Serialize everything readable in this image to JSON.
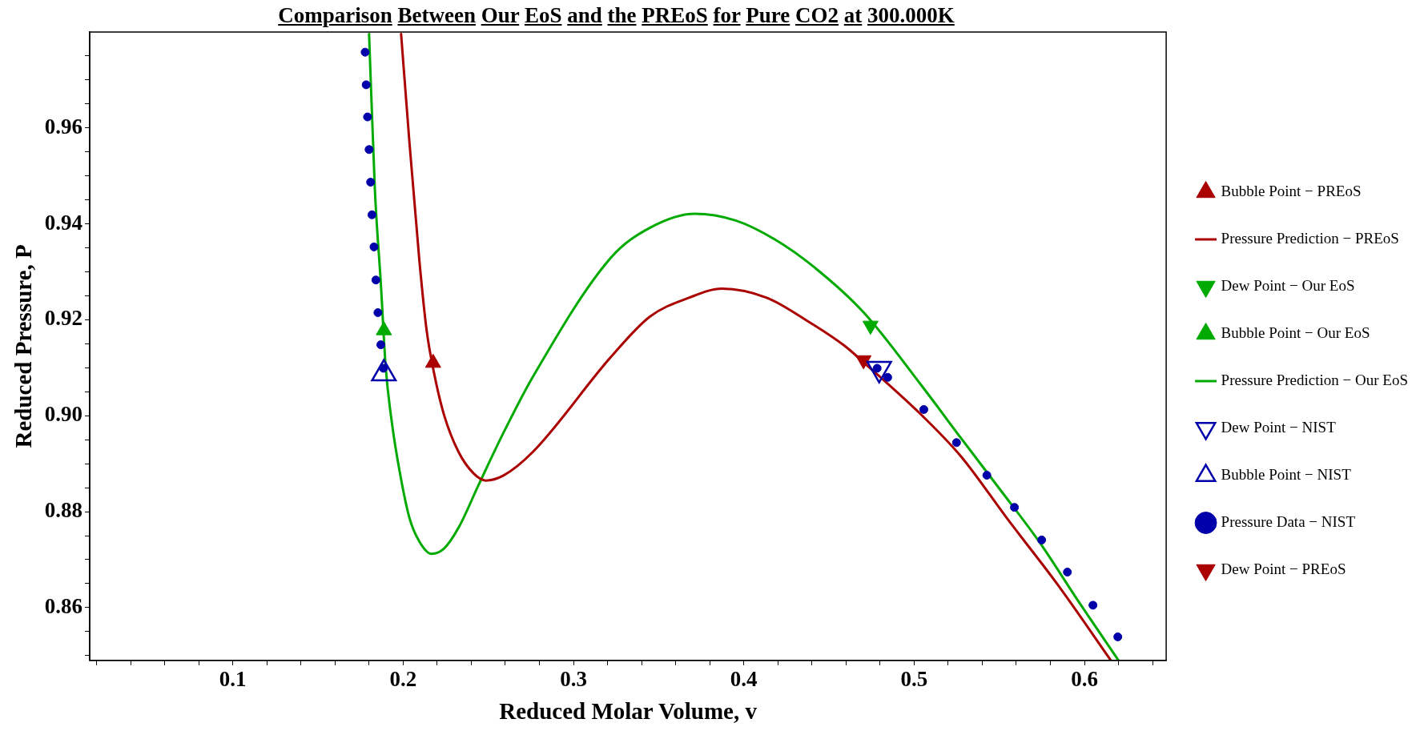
{
  "chart_data": {
    "type": "scatter",
    "title": "Comparison Between Our EoS and the PREoS  for Pure CO2 at 300.000K",
    "xlabel": "Reduced Molar Volume, v",
    "ylabel": "Reduced Pressure, P",
    "xlim": [
      0.016,
      0.648
    ],
    "xticks": [
      {
        "value": 0.02,
        "label": null
      },
      {
        "value": 0.04,
        "label": null
      },
      {
        "value": 0.06,
        "label": null
      },
      {
        "value": 0.08,
        "label": null
      },
      0.1,
      {
        "value": 0.12,
        "label": null
      },
      {
        "value": 0.14,
        "label": null
      },
      {
        "value": 0.16,
        "label": null
      },
      {
        "value": 0.18,
        "label": null
      },
      0.2,
      {
        "value": 0.22,
        "label": null
      },
      {
        "value": 0.24,
        "label": null
      },
      {
        "value": 0.26,
        "label": null
      },
      {
        "value": 0.28,
        "label": null
      },
      0.3,
      {
        "value": 0.32,
        "label": null
      },
      {
        "value": 0.34,
        "label": null
      },
      {
        "value": 0.36,
        "label": null
      },
      {
        "value": 0.38,
        "label": null
      },
      0.4,
      {
        "value": 0.42,
        "label": null
      },
      {
        "value": 0.44,
        "label": null
      },
      {
        "value": 0.46,
        "label": null
      },
      {
        "value": 0.48,
        "label": null
      },
      0.5,
      {
        "value": 0.52,
        "label": null
      },
      {
        "value": 0.54,
        "label": null
      },
      {
        "value": 0.56,
        "label": null
      },
      {
        "value": 0.58,
        "label": null
      },
      0.6,
      {
        "value": 0.62,
        "label": null
      },
      {
        "value": 0.64,
        "label": null
      }
    ],
    "ylim": [
      0.849,
      0.98
    ],
    "yticks": [
      {
        "value": 0.85,
        "label": null
      },
      {
        "value": 0.855,
        "label": null
      },
      {
        "value": 0.86,
        "label": "0.86"
      },
      {
        "value": 0.865,
        "label": null
      },
      {
        "value": 0.87,
        "label": null
      },
      {
        "value": 0.875,
        "label": null
      },
      {
        "value": 0.88,
        "label": "0.88"
      },
      {
        "value": 0.885,
        "label": null
      },
      {
        "value": 0.89,
        "label": null
      },
      {
        "value": 0.895,
        "label": null
      },
      {
        "value": 0.9,
        "label": "0.90"
      },
      {
        "value": 0.905,
        "label": null
      },
      {
        "value": 0.91,
        "label": null
      },
      {
        "value": 0.915,
        "label": null
      },
      {
        "value": 0.92,
        "label": "0.92"
      },
      {
        "value": 0.925,
        "label": null
      },
      {
        "value": 0.93,
        "label": null
      },
      {
        "value": 0.935,
        "label": null
      },
      {
        "value": 0.94,
        "label": "0.94"
      },
      {
        "value": 0.945,
        "label": null
      },
      {
        "value": 0.95,
        "label": null
      },
      {
        "value": 0.955,
        "label": null
      },
      {
        "value": 0.96,
        "label": "0.96"
      },
      {
        "value": 0.965,
        "label": null
      },
      {
        "value": 0.97,
        "label": null
      },
      {
        "value": 0.975,
        "label": null
      }
    ],
    "grid": false,
    "legend": "right",
    "series": [
      {
        "name": "Bubble Point − PREoS",
        "type": "scatter",
        "marker": "triangle",
        "color": "#aa0000",
        "x": [
          0.2176
        ],
        "values": [
          0.911
        ]
      },
      {
        "name": "Pressure Prediction − PREoS",
        "type": "line",
        "marker": "none",
        "color": "#aa0000",
        "x": [
          0.1988,
          0.2037,
          0.2095,
          0.2138,
          0.2181,
          0.224,
          0.2326,
          0.2413,
          0.2485,
          0.2587,
          0.276,
          0.3221,
          0.345,
          0.3678,
          0.3872,
          0.4135,
          0.4363,
          0.4591,
          0.4705,
          0.5048,
          0.5276,
          0.555,
          0.5847,
          0.6155
        ],
        "values": [
          0.9796,
          0.957,
          0.9325,
          0.9178,
          0.909,
          0.9002,
          0.8924,
          0.888,
          0.8865,
          0.8875,
          0.8924,
          0.9123,
          0.9207,
          0.9246,
          0.9265,
          0.9246,
          0.92,
          0.9146,
          0.9111,
          0.9,
          0.8915,
          0.8784,
          0.8646,
          0.849
        ]
      },
      {
        "name": "Dew Point − Our EoS",
        "type": "scatter",
        "marker": "triangle-down",
        "color": "#00aa00",
        "x": [
          0.4744
        ],
        "values": [
          0.9188
        ]
      },
      {
        "name": "Bubble Point − Our EoS",
        "type": "scatter",
        "marker": "triangle",
        "color": "#00aa00",
        "x": [
          0.1887
        ],
        "values": [
          0.9178
        ]
      },
      {
        "name": "Pressure Prediction − Our EoS",
        "type": "line",
        "marker": "none",
        "color": "#00aa00",
        "x": [
          0.18,
          0.1834,
          0.1869,
          0.1898,
          0.1935,
          0.1979,
          0.2037,
          0.2095,
          0.2167,
          0.224,
          0.2326,
          0.2442,
          0.2587,
          0.276,
          0.3221,
          0.345,
          0.3712,
          0.3952,
          0.418,
          0.4409,
          0.4705,
          0.5048,
          0.5276,
          0.5505,
          0.5733,
          0.5961,
          0.62
        ],
        "values": [
          0.9796,
          0.9472,
          0.9276,
          0.91,
          0.8983,
          0.8885,
          0.8787,
          0.8738,
          0.8712,
          0.8723,
          0.8767,
          0.8855,
          0.8963,
          0.908,
          0.933,
          0.9392,
          0.9421,
          0.9407,
          0.9368,
          0.9311,
          0.9215,
          0.9061,
          0.8953,
          0.8846,
          0.8738,
          0.8615,
          0.849
        ]
      },
      {
        "name": "Dew Point − NIST",
        "type": "scatter",
        "marker": "triangle-down-open",
        "color": "#0000aa",
        "x": [
          0.4795
        ],
        "values": [
          0.9098
        ]
      },
      {
        "name": "Bubble Point − NIST",
        "type": "scatter",
        "marker": "triangle-open",
        "color": "#0000aa",
        "x": [
          0.1887
        ],
        "values": [
          0.9088
        ]
      },
      {
        "name": "Pressure Data − NIST",
        "type": "scatter",
        "marker": "circle",
        "color": "#0000aa",
        "x": [
          0.1777,
          0.1783,
          0.1791,
          0.18,
          0.1809,
          0.1817,
          0.1829,
          0.184,
          0.1852,
          0.1869,
          0.1884,
          0.4783,
          0.4845,
          0.5057,
          0.5249,
          0.5427,
          0.5589,
          0.5749,
          0.59,
          0.605,
          0.6196
        ],
        "values": [
          0.9758,
          0.969,
          0.9623,
          0.9555,
          0.9487,
          0.9419,
          0.9352,
          0.9283,
          0.9215,
          0.9148,
          0.9099,
          0.9099,
          0.908,
          0.9013,
          0.8944,
          0.8876,
          0.8809,
          0.8741,
          0.8674,
          0.8605,
          0.8539
        ]
      },
      {
        "name": "Dew Point − PREoS",
        "type": "scatter",
        "marker": "triangle-down",
        "color": "#aa0000",
        "x": [
          0.4703
        ],
        "values": [
          0.9116
        ]
      }
    ]
  }
}
